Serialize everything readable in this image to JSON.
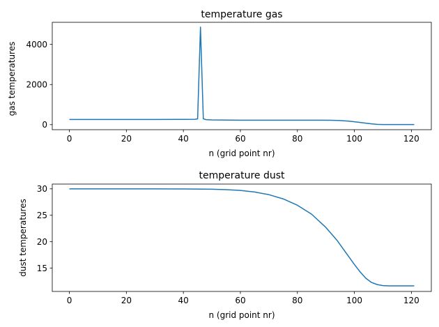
{
  "chart_data": [
    {
      "type": "line",
      "title": "temperature gas",
      "xlabel": "n (grid point nr)",
      "ylabel": "gas temperatures",
      "xlim": [
        -6,
        127
      ],
      "ylim": [
        -250,
        5100
      ],
      "xticks": [
        0,
        20,
        40,
        60,
        80,
        100,
        120
      ],
      "yticks": [
        0,
        2000,
        4000
      ],
      "grid": false,
      "color": "#1f77b4",
      "series": [
        {
          "x": [
            0,
            10,
            20,
            30,
            40,
            44,
            45,
            46,
            47,
            48,
            50,
            60,
            70,
            80,
            88,
            92,
            95,
            98,
            100,
            102,
            104,
            106,
            108,
            110,
            112,
            115,
            118,
            121
          ],
          "y": [
            260,
            260,
            260,
            260,
            262,
            268,
            290,
            4860,
            290,
            250,
            235,
            225,
            222,
            222,
            224,
            220,
            205,
            175,
            145,
            110,
            75,
            40,
            15,
            8,
            8,
            8,
            8,
            8
          ]
        }
      ]
    },
    {
      "type": "line",
      "title": "temperature dust",
      "xlabel": "n (grid point nr)",
      "ylabel": "dust temperatures",
      "xlim": [
        -6,
        127
      ],
      "ylim": [
        10.6,
        30.9
      ],
      "xticks": [
        0,
        20,
        40,
        60,
        80,
        100,
        120
      ],
      "yticks": [
        15,
        20,
        25,
        30
      ],
      "grid": false,
      "color": "#1f77b4",
      "series": [
        {
          "x": [
            0,
            10,
            20,
            30,
            40,
            50,
            55,
            60,
            65,
            70,
            75,
            80,
            85,
            90,
            94,
            98,
            100,
            102,
            104,
            106,
            108,
            110,
            112,
            115,
            118,
            121
          ],
          "y": [
            30.0,
            30.0,
            30.0,
            30.0,
            29.98,
            29.92,
            29.85,
            29.7,
            29.4,
            28.9,
            28.1,
            26.9,
            25.2,
            22.7,
            20.2,
            17.2,
            15.7,
            14.3,
            13.1,
            12.3,
            11.9,
            11.7,
            11.65,
            11.65,
            11.65,
            11.65
          ]
        }
      ]
    }
  ]
}
